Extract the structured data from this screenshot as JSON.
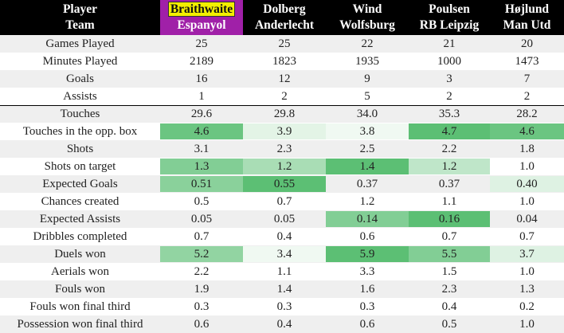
{
  "header": {
    "label_line1": "Player",
    "label_line2": "Team",
    "players": [
      {
        "name": "Braithwaite",
        "team": "Espanyol"
      },
      {
        "name": "Dolberg",
        "team": "Anderlecht"
      },
      {
        "name": "Wind",
        "team": "Wolfsburg"
      },
      {
        "name": "Poulsen",
        "team": "RB Leipzig"
      },
      {
        "name": "Højlund",
        "team": "Man Utd"
      }
    ]
  },
  "colors": {
    "header_bg": "#000000",
    "highlight_column_bg": "#a020a8",
    "highlight_name_bg": "#f2ee00",
    "row_stripe": "#efefef",
    "scale_low": "#f5fbf6",
    "scale_high": "#5cbf74"
  },
  "rows": [
    {
      "label": "Games Played",
      "values": [
        "25",
        "25",
        "22",
        "21",
        "20"
      ],
      "shade": [
        0,
        0,
        0,
        0,
        0
      ]
    },
    {
      "label": "Minutes Played",
      "values": [
        "2189",
        "1823",
        "1935",
        "1000",
        "1473"
      ],
      "shade": [
        0,
        0,
        0,
        0,
        0
      ]
    },
    {
      "label": "Goals",
      "values": [
        "16",
        "12",
        "9",
        "3",
        "7"
      ],
      "shade": [
        0,
        0,
        0,
        0,
        0
      ]
    },
    {
      "label": "Assists",
      "values": [
        "1",
        "2",
        "5",
        "2",
        "2"
      ],
      "shade": [
        0,
        0,
        0,
        0,
        0
      ]
    },
    {
      "label": "Touches",
      "values": [
        "29.6",
        "29.8",
        "34.0",
        "35.3",
        "28.2"
      ],
      "shade": [
        0,
        0,
        0,
        0,
        0
      ]
    },
    {
      "label": "Touches in the opp. box",
      "values": [
        "4.6",
        "3.9",
        "3.8",
        "4.7",
        "4.6"
      ],
      "shade": [
        0.9,
        0.12,
        0.03,
        1.0,
        0.9
      ]
    },
    {
      "label": "Shots",
      "values": [
        "3.1",
        "2.3",
        "2.5",
        "2.2",
        "1.8"
      ],
      "shade": [
        0,
        0,
        0,
        0,
        0
      ]
    },
    {
      "label": "Shots on target",
      "values": [
        "1.3",
        "1.2",
        "1.4",
        "1.2",
        "1.0"
      ],
      "shade": [
        0.75,
        0.5,
        1.0,
        0.35,
        0
      ]
    },
    {
      "label": "Expected Goals",
      "values": [
        "0.51",
        "0.55",
        "0.37",
        "0.37",
        "0.40"
      ],
      "shade": [
        0.7,
        1.0,
        0,
        0,
        0.15
      ]
    },
    {
      "label": "Chances created",
      "values": [
        "0.5",
        "0.7",
        "1.2",
        "1.1",
        "1.0"
      ],
      "shade": [
        0,
        0,
        0,
        0,
        0
      ]
    },
    {
      "label": "Expected Assists",
      "values": [
        "0.05",
        "0.05",
        "0.14",
        "0.16",
        "0.04"
      ],
      "shade": [
        0,
        0,
        0.75,
        1.0,
        0
      ]
    },
    {
      "label": "Dribbles completed",
      "values": [
        "0.7",
        "0.4",
        "0.6",
        "0.7",
        "0.7"
      ],
      "shade": [
        0,
        0,
        0,
        0,
        0
      ]
    },
    {
      "label": "Duels won",
      "values": [
        "5.2",
        "3.4",
        "5.9",
        "5.5",
        "3.7"
      ],
      "shade": [
        0.65,
        0.03,
        1.0,
        0.75,
        0.15
      ]
    },
    {
      "label": "Aerials won",
      "values": [
        "2.2",
        "1.1",
        "3.3",
        "1.5",
        "1.0"
      ],
      "shade": [
        0,
        0,
        0,
        0,
        0
      ]
    },
    {
      "label": "Fouls won",
      "values": [
        "1.9",
        "1.4",
        "1.6",
        "2.3",
        "1.3"
      ],
      "shade": [
        0,
        0,
        0,
        0,
        0
      ]
    },
    {
      "label": "Fouls won final third",
      "values": [
        "0.3",
        "0.3",
        "0.3",
        "0.4",
        "0.2"
      ],
      "shade": [
        0,
        0,
        0,
        0,
        0
      ]
    },
    {
      "label": "Possession won final third",
      "values": [
        "0.6",
        "0.4",
        "0.6",
        "0.5",
        "1.0"
      ],
      "shade": [
        0,
        0,
        0,
        0,
        0
      ]
    }
  ]
}
